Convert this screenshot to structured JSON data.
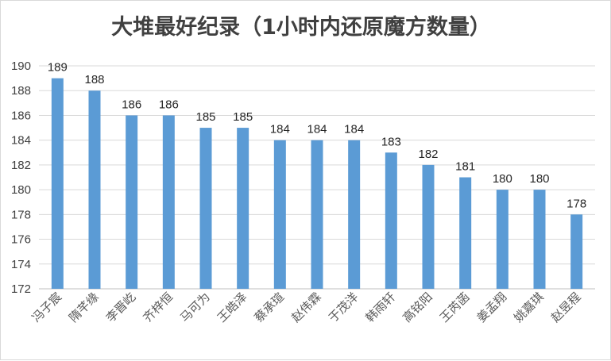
{
  "chart_data": {
    "type": "bar",
    "title": "大堆最好纪录（1小时内还原魔方数量）",
    "xlabel": "",
    "ylabel": "",
    "categories": [
      "冯子宸",
      "隋芊缘",
      "李晋屹",
      "齐梓恒",
      "马可为",
      "王皓泽",
      "蔡承瑄",
      "赵伟霖",
      "于茂洋",
      "韩雨轩",
      "高铭阳",
      "王芮菡",
      "姜孟翔",
      "姚嘉琪",
      "赵昱程"
    ],
    "values": [
      189,
      188,
      186,
      186,
      185,
      185,
      184,
      184,
      184,
      183,
      182,
      181,
      180,
      180,
      178
    ],
    "ylim": [
      172,
      190
    ],
    "yticks": [
      172,
      174,
      176,
      178,
      180,
      182,
      184,
      186,
      188,
      190
    ],
    "grid": true,
    "legend": "none",
    "bar_color": "#5b9bd5",
    "data_labels": true
  }
}
